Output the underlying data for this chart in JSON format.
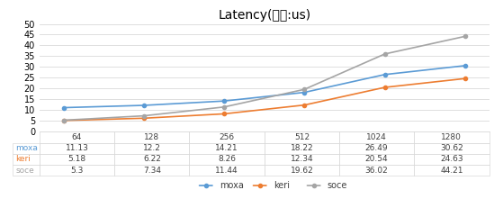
{
  "title": "Latency(단위:us)",
  "x_labels": [
    "64",
    "128",
    "256",
    "512",
    "1024",
    "1280"
  ],
  "series": {
    "moxa": [
      11.13,
      12.2,
      14.21,
      18.22,
      26.49,
      30.62
    ],
    "keri": [
      5.18,
      6.22,
      8.26,
      12.34,
      20.54,
      24.63
    ],
    "soce": [
      5.3,
      7.34,
      11.44,
      19.62,
      36.02,
      44.21
    ]
  },
  "series_order": [
    "moxa",
    "keri",
    "soce"
  ],
  "colors": {
    "moxa": "#5b9bd5",
    "keri": "#ed7d31",
    "soce": "#a5a5a5"
  },
  "ylim": [
    0,
    50
  ],
  "yticks": [
    0,
    5,
    10,
    15,
    20,
    25,
    30,
    35,
    40,
    45,
    50
  ],
  "background_color": "#ffffff",
  "grid_color": "#d9d9d9",
  "title_fontsize": 10,
  "table_fontsize": 6.5,
  "legend_fontsize": 7,
  "tick_fontsize": 7,
  "table_row_labels": [
    "moxa",
    "keri",
    "soce"
  ],
  "table_col_labels": [
    "64",
    "128",
    "256",
    "512",
    "1024",
    "1280"
  ],
  "table_values": [
    [
      11.13,
      12.2,
      14.21,
      18.22,
      26.49,
      30.62
    ],
    [
      5.18,
      6.22,
      8.26,
      12.34,
      20.54,
      24.63
    ],
    [
      5.3,
      7.34,
      11.44,
      19.62,
      36.02,
      44.21
    ]
  ]
}
